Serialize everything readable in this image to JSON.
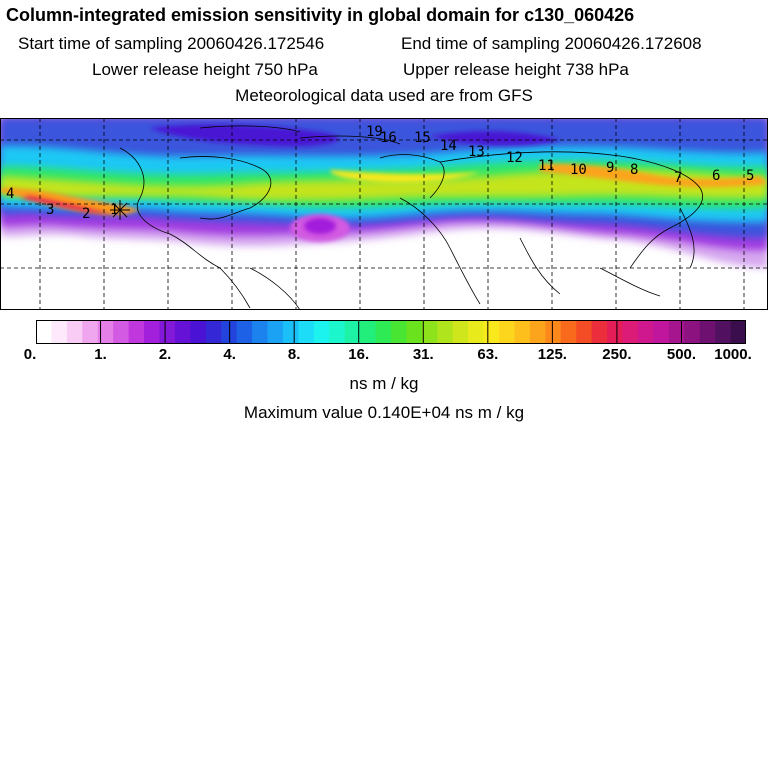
{
  "title": "Column-integrated emission sensitivity in global domain for c130_060426",
  "sampling": {
    "start": "Start time of sampling 20060426.172546",
    "end": "End time of sampling 20060426.172608"
  },
  "release": {
    "lower": "Lower release height  750 hPa",
    "upper": "Upper release height  738 hPa"
  },
  "met_note": "Meteorological data used are from GFS",
  "trajectory_labels": [
    "4",
    "3",
    "2",
    "1",
    "19",
    "16",
    "15",
    "14",
    "13",
    "12",
    "11",
    "10",
    "9",
    "8",
    "7",
    "6",
    "5"
  ],
  "colorbar": {
    "ticks": [
      "0.",
      "1.",
      "2.",
      "4.",
      "8.",
      "16.",
      "31.",
      "63.",
      "125.",
      "250.",
      "500.",
      "1000."
    ],
    "colors": [
      "#ffffff",
      "#fde9fb",
      "#f8ccf5",
      "#f0a6ef",
      "#e57fe8",
      "#d35ae2",
      "#c038dd",
      "#a21fdb",
      "#8418d8",
      "#6612d6",
      "#4a12d4",
      "#3428d6",
      "#2244dc",
      "#1d62e6",
      "#1c82ee",
      "#1ca2f5",
      "#1cc0f8",
      "#1cdcf8",
      "#1cf2ee",
      "#1cf6cc",
      "#1ef2a4",
      "#22ee7c",
      "#2eea54",
      "#48e632",
      "#6ae21e",
      "#8ee21c",
      "#b0e41c",
      "#cfe61c",
      "#e8ea1c",
      "#f8e81c",
      "#fcd61c",
      "#fcbf1c",
      "#fca41c",
      "#fc881c",
      "#fa6a1c",
      "#f44c24",
      "#ec2e3c",
      "#e41c58",
      "#dc1a78",
      "#d0188e",
      "#c0169e",
      "#a6148e",
      "#8c1280",
      "#6e1070",
      "#521060",
      "#3a0e4c"
    ],
    "unit": "ns m / kg"
  },
  "max_value": "Maximum value  0.140E+04 ns m / kg"
}
